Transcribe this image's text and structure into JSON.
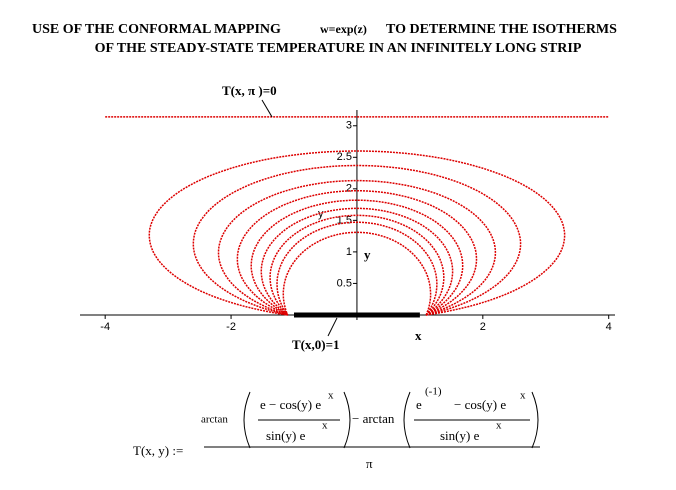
{
  "title": [
    "USE OF THE CONFORMAL MAPPING",
    "w=exp(z)",
    "TO DETERMINE THE ISOTHERMS"
  ],
  "subtitle": "OF THE STEADY-STATE TEMPERATURE IN AN INFINITELY LONG STRIP",
  "chart_data": {
    "type": "contour",
    "xlim": [
      -4.4,
      4.1
    ],
    "ylim": [
      -0.08,
      3.25
    ],
    "xticks": [
      -4,
      -2,
      2,
      4
    ],
    "yticks": [
      0.5,
      1,
      1.5,
      2,
      2.5,
      3
    ],
    "xlabel": "x",
    "ylabel": "y",
    "y_axis_tag": "y",
    "color": "#dd0000",
    "converge_x": [
      -1.1,
      1.1
    ],
    "top_boundary": {
      "label": "T(x, π )=0",
      "y": 3.14
    },
    "bottom_boundary": {
      "label": "T(x,0)=1",
      "x": [
        -1,
        1
      ]
    },
    "isotherms": [
      {
        "top": 2.6,
        "half_width": 3.3
      },
      {
        "top": 2.37,
        "half_width": 2.6
      },
      {
        "top": 2.13,
        "half_width": 2.2
      },
      {
        "top": 1.97,
        "half_width": 1.9
      },
      {
        "top": 1.82,
        "half_width": 1.68
      },
      {
        "top": 1.69,
        "half_width": 1.52
      },
      {
        "top": 1.58,
        "half_width": 1.38
      },
      {
        "top": 1.47,
        "half_width": 1.27
      },
      {
        "top": 1.31,
        "half_width": 1.17
      }
    ]
  },
  "formula": {
    "lhs": "T(x, y) :=",
    "arctan1": "arctan",
    "num1": "e − cos(y) e",
    "x1": "x",
    "den1": "sin(y) e",
    "x2": "x",
    "minus": "− arctan",
    "e2": "e",
    "exp2": "(-1)",
    "num2": "− cos(y) e",
    "x3": "x",
    "den2": "sin(y) e",
    "x4": "x",
    "pi": "π"
  }
}
